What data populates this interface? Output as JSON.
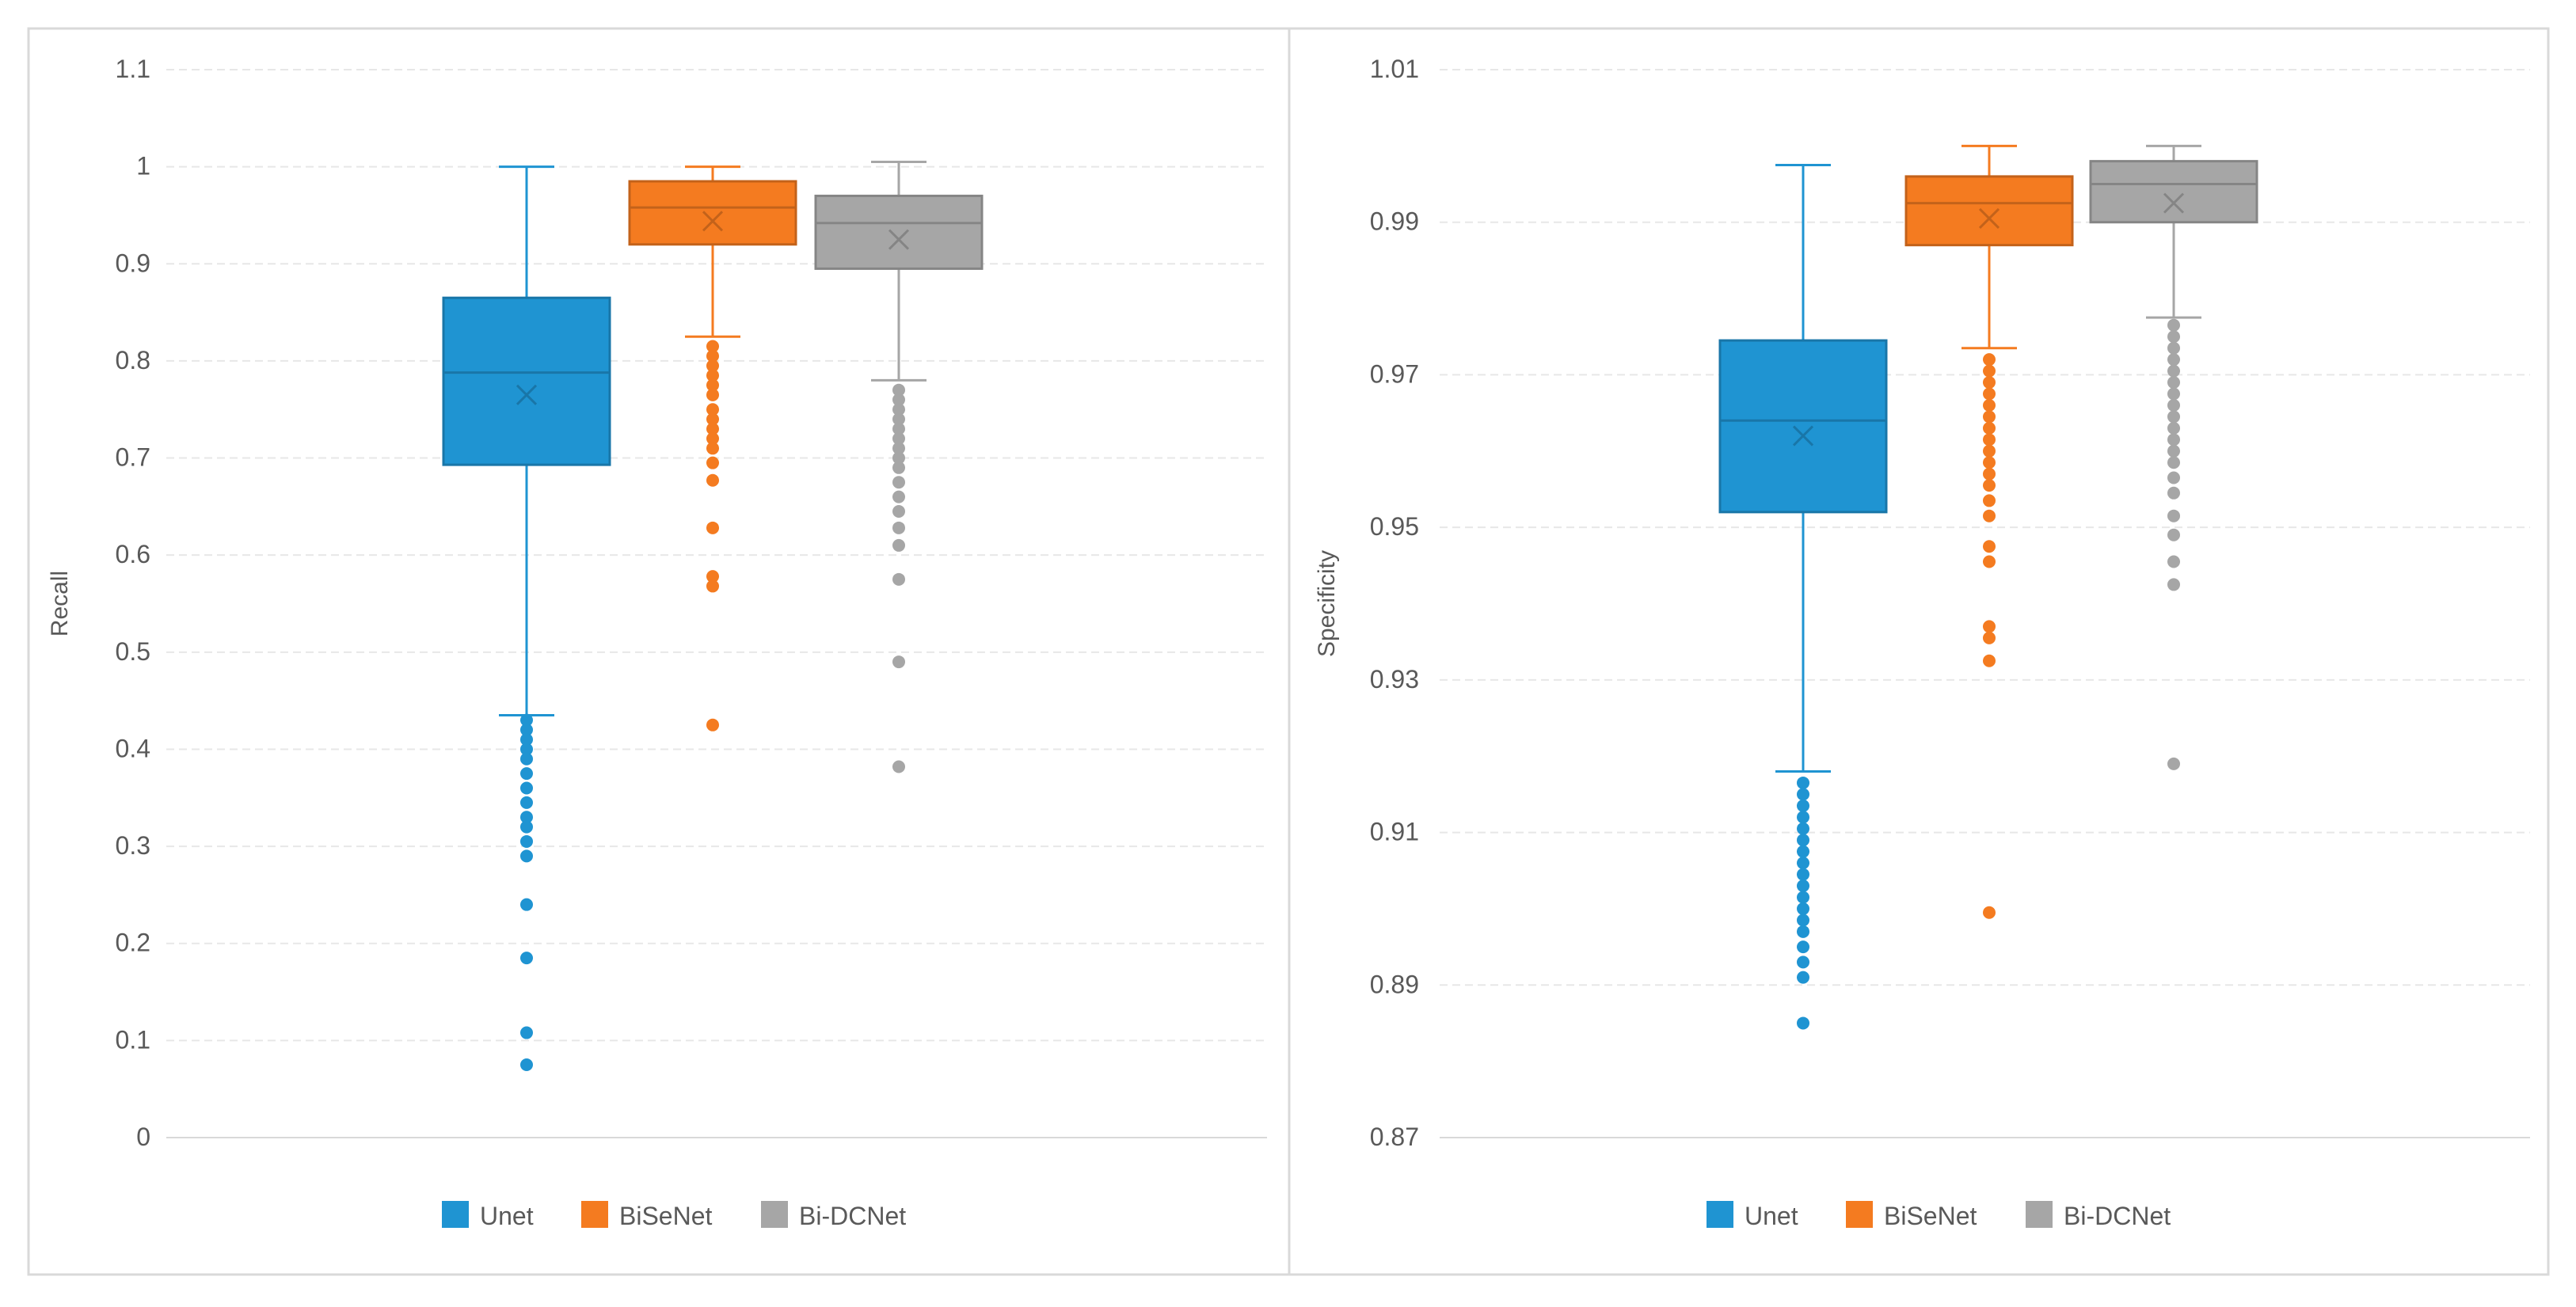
{
  "chart_data": [
    {
      "type": "box",
      "title": "",
      "xlabel": "",
      "ylabel": "Recall",
      "ylim": [
        0,
        1.1
      ],
      "yticks": [
        0,
        0.1,
        0.2,
        0.3,
        0.4,
        0.5,
        0.6,
        0.7,
        0.8,
        0.9,
        1,
        1.1
      ],
      "ytick_labels": [
        "0",
        "0.1",
        "0.2",
        "0.3",
        "0.4",
        "0.5",
        "0.6",
        "0.7",
        "0.8",
        "0.9",
        "1",
        "1.1"
      ],
      "grid": true,
      "legend_position": "bottom-center",
      "series": [
        {
          "name": "Unet",
          "color": "#1f94d2",
          "whisker_low": 0.435,
          "q1": 0.693,
          "median": 0.788,
          "q3": 0.865,
          "whisker_high": 1.0,
          "mean": 0.765,
          "outliers": [
            0.43,
            0.42,
            0.41,
            0.4,
            0.39,
            0.375,
            0.36,
            0.345,
            0.33,
            0.32,
            0.305,
            0.29,
            0.24,
            0.185,
            0.108,
            0.075
          ]
        },
        {
          "name": "BiSeNet",
          "color": "#f47b20",
          "whisker_low": 0.825,
          "q1": 0.92,
          "median": 0.958,
          "q3": 0.985,
          "whisker_high": 1.0,
          "mean": 0.944,
          "outliers": [
            0.815,
            0.805,
            0.795,
            0.785,
            0.775,
            0.765,
            0.75,
            0.74,
            0.73,
            0.72,
            0.71,
            0.695,
            0.677,
            0.628,
            0.578,
            0.568,
            0.425
          ]
        },
        {
          "name": "Bi-DCNet",
          "color": "#a6a6a6",
          "whisker_low": 0.78,
          "q1": 0.895,
          "median": 0.942,
          "q3": 0.97,
          "whisker_high": 1.005,
          "mean": 0.925,
          "outliers": [
            0.77,
            0.76,
            0.75,
            0.74,
            0.73,
            0.72,
            0.71,
            0.7,
            0.69,
            0.675,
            0.66,
            0.645,
            0.628,
            0.61,
            0.575,
            0.49,
            0.382
          ]
        }
      ]
    },
    {
      "type": "box",
      "title": "",
      "xlabel": "",
      "ylabel": "Specificity",
      "ylim": [
        0.87,
        1.01
      ],
      "yticks": [
        0.87,
        0.89,
        0.91,
        0.93,
        0.95,
        0.97,
        0.99,
        1.01
      ],
      "ytick_labels": [
        "0.87",
        "0.89",
        "0.91",
        "0.93",
        "0.95",
        "0.97",
        "0.99",
        "1.01"
      ],
      "grid": true,
      "legend_position": "bottom-center",
      "series": [
        {
          "name": "Unet",
          "color": "#1f94d2",
          "whisker_low": 0.918,
          "q1": 0.952,
          "median": 0.964,
          "q3": 0.9745,
          "whisker_high": 0.9975,
          "mean": 0.962,
          "outliers": [
            0.9165,
            0.915,
            0.9135,
            0.912,
            0.9105,
            0.909,
            0.9075,
            0.906,
            0.9045,
            0.903,
            0.9015,
            0.9,
            0.8985,
            0.897,
            0.895,
            0.893,
            0.891,
            0.885
          ]
        },
        {
          "name": "BiSeNet",
          "color": "#f47b20",
          "whisker_low": 0.9735,
          "q1": 0.987,
          "median": 0.9925,
          "q3": 0.996,
          "whisker_high": 1.0,
          "mean": 0.9905,
          "outliers": [
            0.972,
            0.9705,
            0.969,
            0.9675,
            0.966,
            0.9645,
            0.963,
            0.9615,
            0.96,
            0.9585,
            0.957,
            0.9555,
            0.9535,
            0.9515,
            0.9475,
            0.9455,
            0.937,
            0.9355,
            0.9325,
            0.8995
          ]
        },
        {
          "name": "Bi-DCNet",
          "color": "#a6a6a6",
          "whisker_low": 0.9775,
          "q1": 0.99,
          "median": 0.995,
          "q3": 0.998,
          "whisker_high": 1.0,
          "mean": 0.9925,
          "outliers": [
            0.9765,
            0.975,
            0.9735,
            0.972,
            0.9705,
            0.969,
            0.9675,
            0.966,
            0.9645,
            0.963,
            0.9615,
            0.96,
            0.9585,
            0.9565,
            0.9545,
            0.9515,
            0.949,
            0.9455,
            0.9425,
            0.919
          ]
        }
      ]
    }
  ]
}
